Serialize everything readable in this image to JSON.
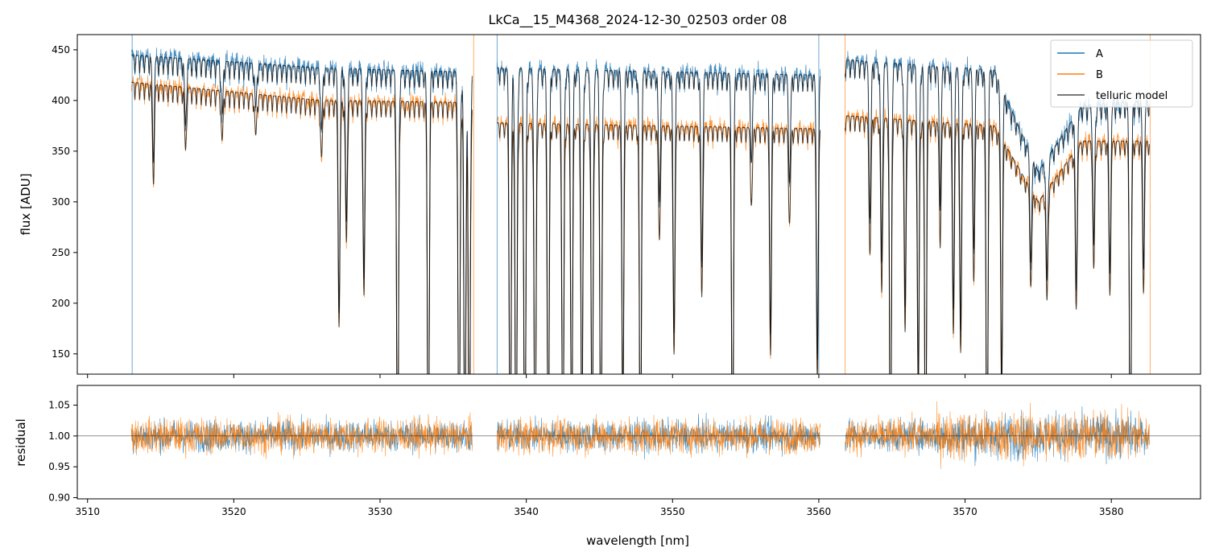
{
  "figure": {
    "title": "LkCa__15_M4368_2024-12-30_02503  order 08"
  },
  "chart_data": [
    {
      "id": "flux",
      "type": "line",
      "title": "LkCa__15_M4368_2024-12-30_02503  order 08",
      "xlabel": "",
      "ylabel": "flux [ADU]",
      "xlim": [
        3509.3,
        3586.1
      ],
      "ylim": [
        130,
        465
      ],
      "yticks": [
        150,
        200,
        250,
        300,
        350,
        400,
        450
      ],
      "grid": false,
      "legend": "top-right",
      "segments_nm": [
        [
          3513.0,
          3536.3
        ],
        [
          3538.0,
          3560.1
        ],
        [
          3561.8,
          3582.6
        ]
      ],
      "series": [
        {
          "name": "A",
          "color": "#1f77b4",
          "continuum": [
            [
              3513,
              445
            ],
            [
              3526,
              432
            ],
            [
              3536,
              428
            ],
            [
              3538,
              432
            ],
            [
              3560,
              425
            ],
            [
              3561.8,
              440
            ],
            [
              3572,
              430
            ],
            [
              3575,
              330
            ],
            [
              3578,
              395
            ],
            [
              3582.6,
              400
            ]
          ]
        },
        {
          "name": "B",
          "color": "#ff7f0e",
          "continuum": [
            [
              3513,
              418
            ],
            [
              3526,
              400
            ],
            [
              3536,
              398
            ],
            [
              3538,
              378
            ],
            [
              3560,
              372
            ],
            [
              3561.8,
              385
            ],
            [
              3572,
              375
            ],
            [
              3575,
              300
            ],
            [
              3578,
              360
            ],
            [
              3582.6,
              360
            ]
          ]
        },
        {
          "name": "telluric model",
          "color": "#000000"
        }
      ],
      "telluric_lines": [
        {
          "x": 3514.5,
          "depth": 0.22
        },
        {
          "x": 3516.7,
          "depth": 0.15
        },
        {
          "x": 3519.2,
          "depth": 0.12
        },
        {
          "x": 3521.5,
          "depth": 0.1
        },
        {
          "x": 3526.0,
          "depth": 0.14
        },
        {
          "x": 3527.2,
          "depth": 0.55
        },
        {
          "x": 3527.7,
          "depth": 0.35
        },
        {
          "x": 3528.9,
          "depth": 0.48
        },
        {
          "x": 3531.2,
          "depth": 1.0
        },
        {
          "x": 3533.3,
          "depth": 1.0
        },
        {
          "x": 3535.4,
          "depth": 1.0
        },
        {
          "x": 3535.8,
          "depth": 1.0
        },
        {
          "x": 3536.1,
          "depth": 1.0
        },
        {
          "x": 3538.9,
          "depth": 1.0
        },
        {
          "x": 3539.3,
          "depth": 1.0
        },
        {
          "x": 3539.9,
          "depth": 1.0
        },
        {
          "x": 3540.6,
          "depth": 1.0
        },
        {
          "x": 3541.5,
          "depth": 0.95
        },
        {
          "x": 3542.5,
          "depth": 1.0
        },
        {
          "x": 3543.1,
          "depth": 0.9
        },
        {
          "x": 3543.8,
          "depth": 0.85
        },
        {
          "x": 3544.5,
          "depth": 0.9
        },
        {
          "x": 3545.1,
          "depth": 1.0
        },
        {
          "x": 3546.6,
          "depth": 0.8
        },
        {
          "x": 3547.8,
          "depth": 1.0
        },
        {
          "x": 3549.1,
          "depth": 0.3
        },
        {
          "x": 3550.1,
          "depth": 0.6
        },
        {
          "x": 3552.0,
          "depth": 0.45
        },
        {
          "x": 3554.1,
          "depth": 1.0
        },
        {
          "x": 3555.4,
          "depth": 0.2
        },
        {
          "x": 3556.7,
          "depth": 0.6
        },
        {
          "x": 3558.0,
          "depth": 0.25
        },
        {
          "x": 3559.9,
          "depth": 0.65
        },
        {
          "x": 3563.5,
          "depth": 0.35
        },
        {
          "x": 3564.3,
          "depth": 0.45
        },
        {
          "x": 3564.9,
          "depth": 1.0
        },
        {
          "x": 3565.9,
          "depth": 0.55
        },
        {
          "x": 3566.8,
          "depth": 0.72
        },
        {
          "x": 3567.3,
          "depth": 1.0
        },
        {
          "x": 3568.3,
          "depth": 0.3
        },
        {
          "x": 3569.2,
          "depth": 0.55
        },
        {
          "x": 3569.7,
          "depth": 0.6
        },
        {
          "x": 3570.6,
          "depth": 0.4
        },
        {
          "x": 3571.5,
          "depth": 1.0
        },
        {
          "x": 3572.5,
          "depth": 0.7
        },
        {
          "x": 3574.5,
          "depth": 0.3
        },
        {
          "x": 3575.6,
          "depth": 0.35
        },
        {
          "x": 3577.6,
          "depth": 0.45
        },
        {
          "x": 3578.8,
          "depth": 0.35
        },
        {
          "x": 3579.9,
          "depth": 0.42
        },
        {
          "x": 3581.3,
          "depth": 1.0
        },
        {
          "x": 3582.2,
          "depth": 0.4
        }
      ]
    },
    {
      "id": "residual",
      "type": "line",
      "title": "",
      "xlabel": "wavelength [nm]",
      "ylabel": "residual",
      "xlim": [
        3509.3,
        3586.1
      ],
      "ylim": [
        0.898,
        1.082
      ],
      "xticks": [
        3510,
        3520,
        3530,
        3540,
        3550,
        3560,
        3570,
        3580
      ],
      "yticks": [
        0.9,
        0.95,
        1.0,
        1.05
      ],
      "ytick_labels": [
        "0.90",
        "0.95",
        "1.00",
        "1.05"
      ],
      "reference_line": 1.0,
      "grid": false,
      "series": [
        {
          "name": "A",
          "color": "#1f77b4",
          "scatter": 0.025
        },
        {
          "name": "B",
          "color": "#ff7f0e",
          "scatter": 0.028
        }
      ]
    }
  ]
}
